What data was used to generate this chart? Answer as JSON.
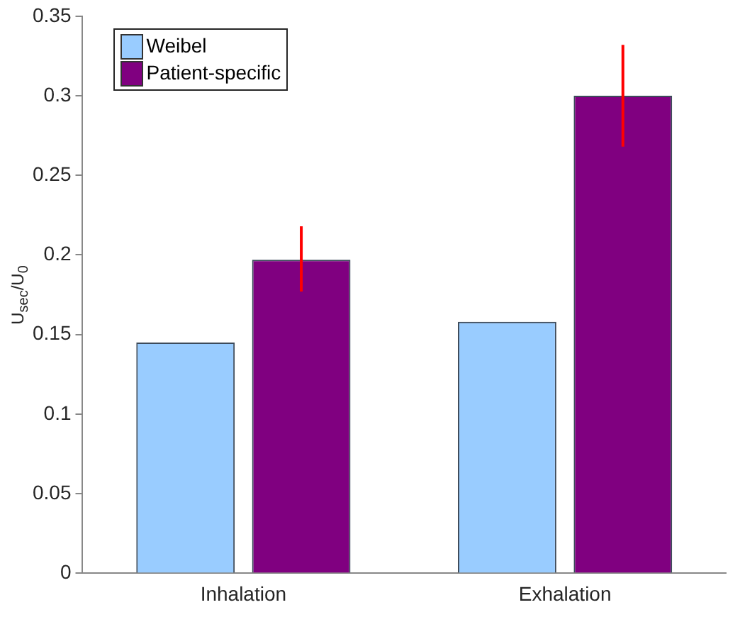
{
  "chart_data": {
    "type": "bar",
    "ylabel": "U$_{sec}$/U$_{0}$",
    "categories": [
      "Inhalation",
      "Exhalation"
    ],
    "series": [
      {
        "name": "Weibel",
        "color": "#99ccff",
        "values": [
          0.145,
          0.158
        ]
      },
      {
        "name": "Patient-specific",
        "color": "#800080",
        "values": [
          0.197,
          0.3
        ],
        "errors": [
          [
            0.177,
            0.218
          ],
          [
            0.268,
            0.332
          ]
        ]
      }
    ],
    "ylim": [
      0,
      0.35
    ],
    "yticks": [
      0,
      0.05,
      0.1,
      0.15,
      0.2,
      0.25,
      0.3,
      0.35
    ],
    "grid": false,
    "legend": "top left"
  }
}
